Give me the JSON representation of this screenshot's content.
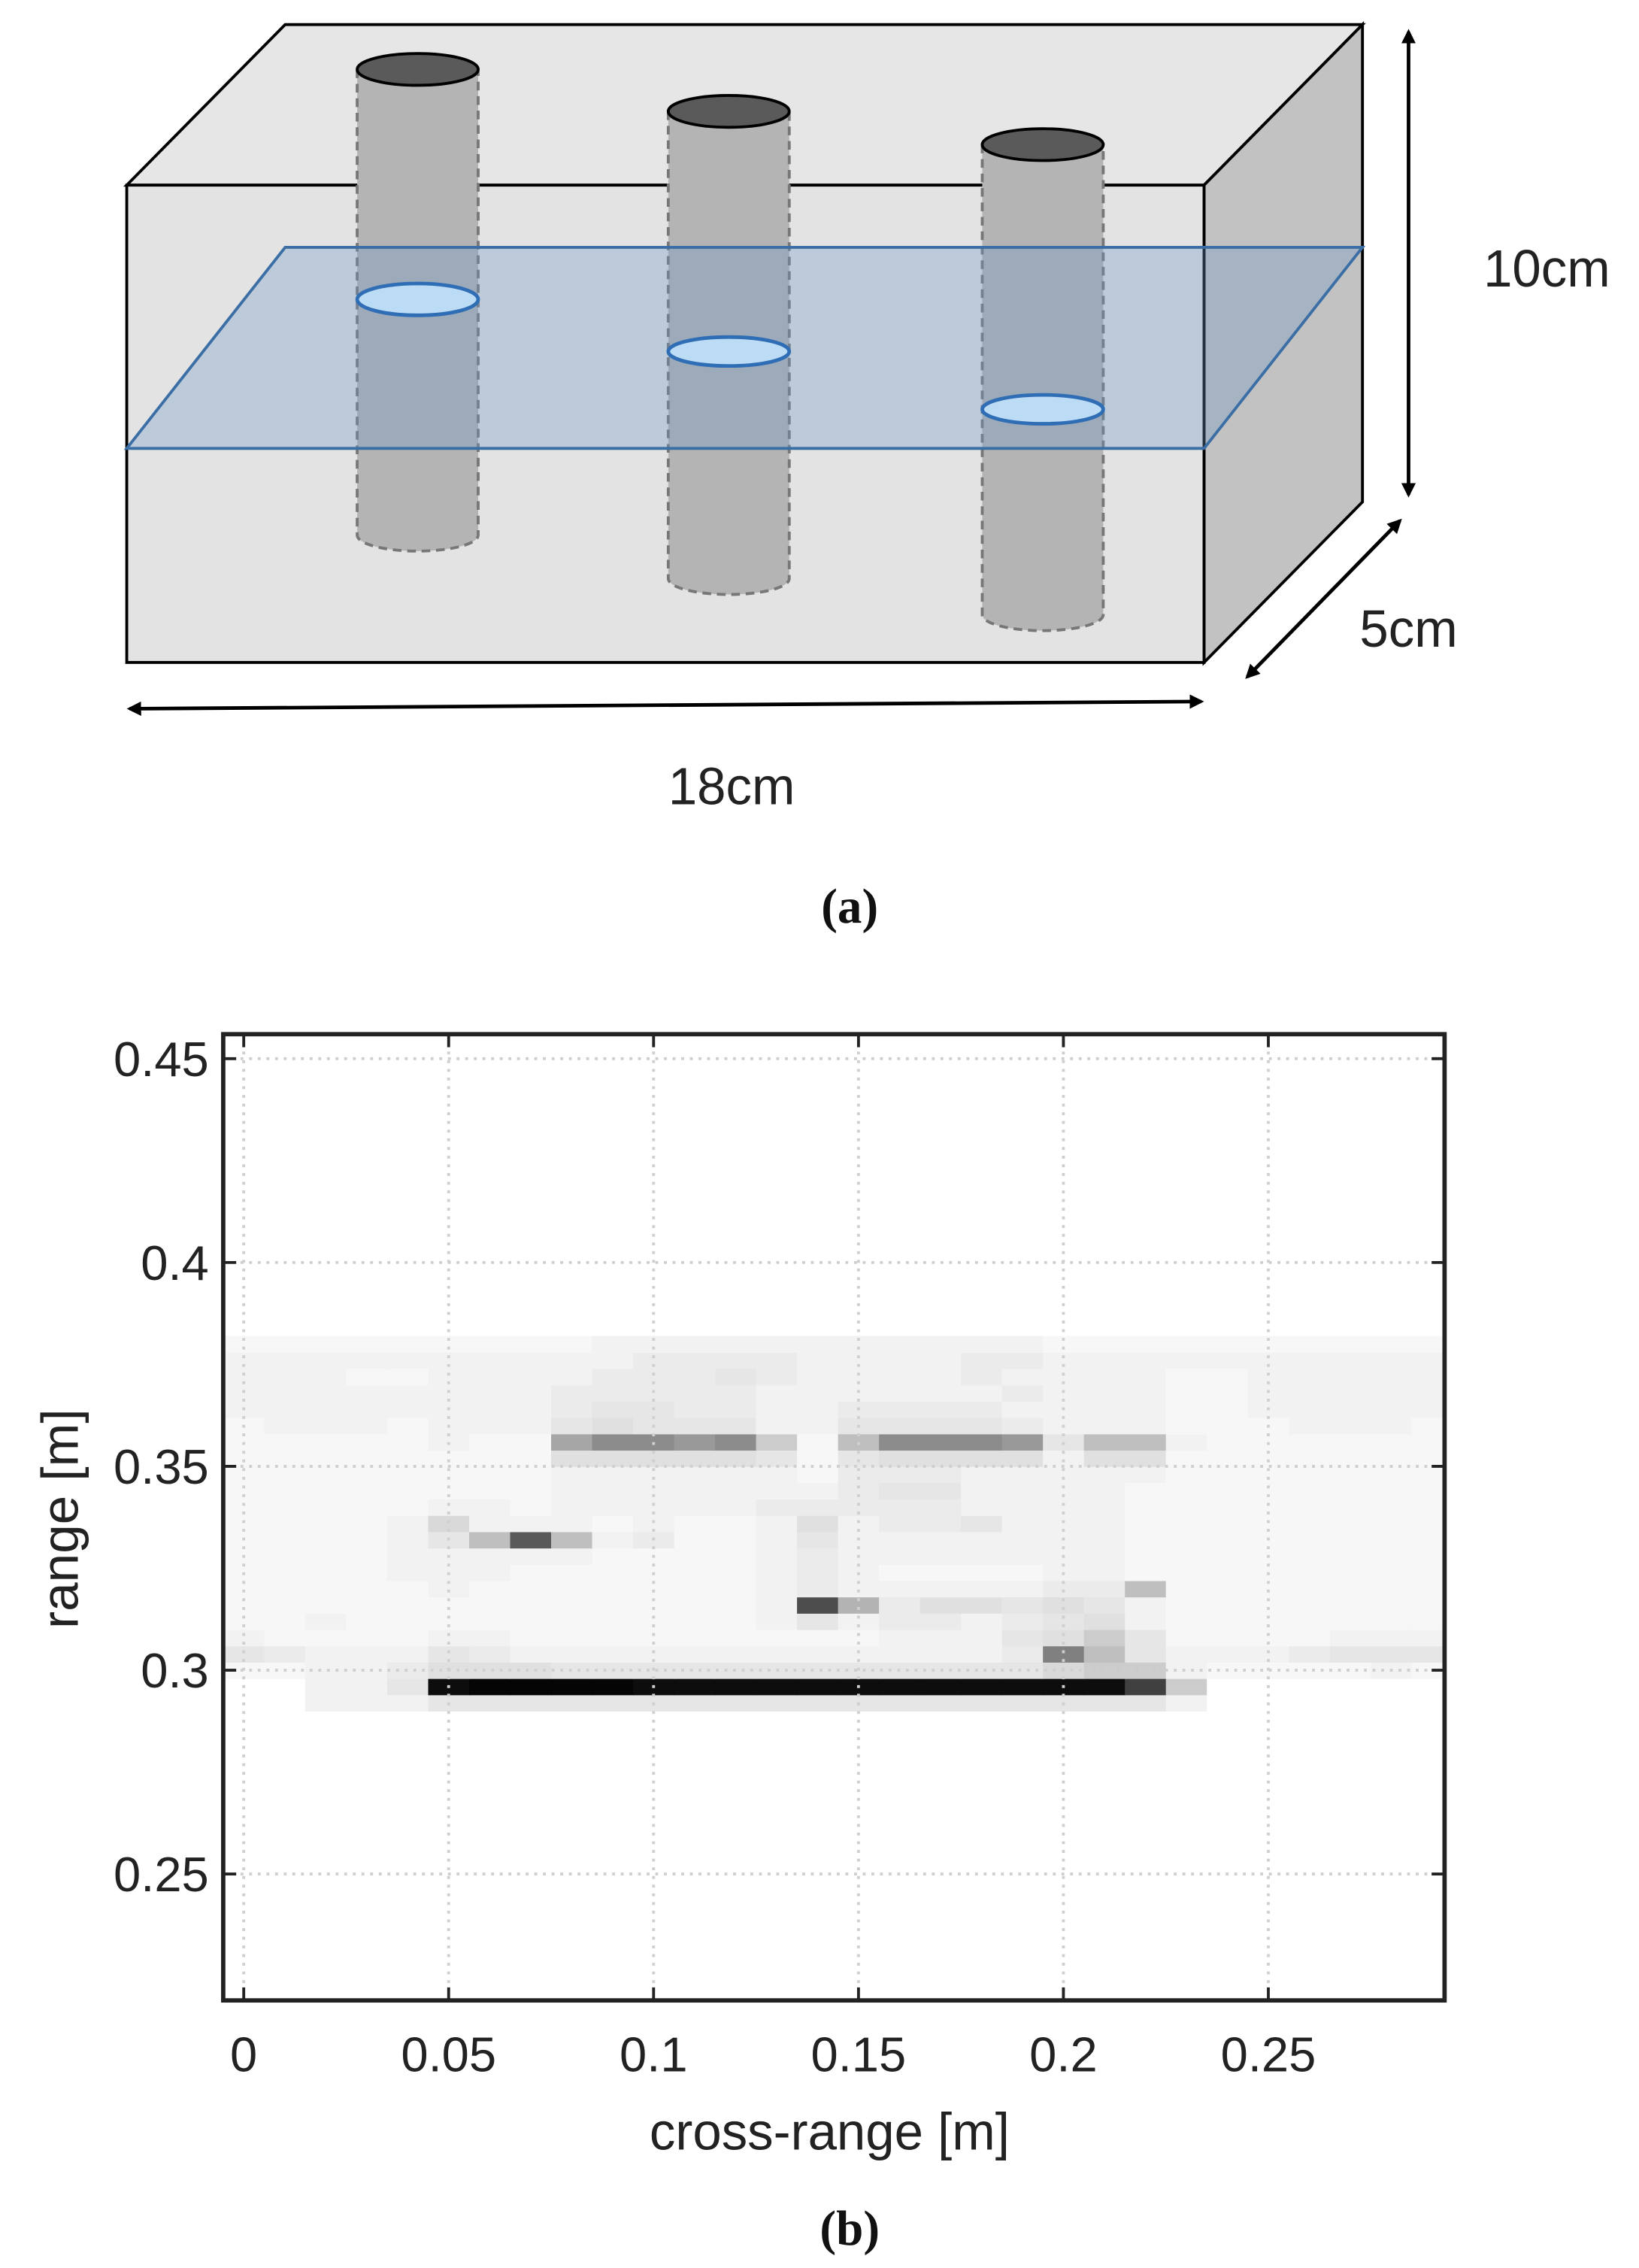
{
  "diagram": {
    "height_label": "10cm",
    "depth_label": "5cm",
    "width_label": "18cm",
    "caption": "(a)"
  },
  "chart_data": {
    "type": "heatmap",
    "caption": "(b)",
    "xlabel": "cross-range [m]",
    "ylabel": "range [m]",
    "x": [
      0,
      0.01,
      0.02,
      0.03,
      0.04,
      0.05,
      0.06,
      0.07,
      0.08,
      0.09,
      0.1,
      0.11,
      0.12,
      0.13,
      0.14,
      0.15,
      0.16,
      0.17,
      0.18,
      0.19,
      0.2,
      0.21,
      0.22,
      0.23,
      0.24,
      0.25,
      0.26,
      0.27,
      0.28,
      0.29
    ],
    "y": [
      0.292,
      0.296,
      0.3,
      0.304,
      0.308,
      0.312,
      0.316,
      0.32,
      0.324,
      0.328,
      0.332,
      0.336,
      0.34,
      0.344,
      0.348,
      0.352,
      0.356,
      0.36,
      0.364,
      0.368,
      0.372,
      0.376,
      0.38
    ],
    "z": [
      [
        0,
        0,
        0.05,
        0.05,
        0.05,
        0.1,
        0.1,
        0.1,
        0.1,
        0.1,
        0.1,
        0.1,
        0.1,
        0.1,
        0.1,
        0.1,
        0.1,
        0.1,
        0.1,
        0.1,
        0.1,
        0.1,
        0.1,
        0.05,
        0,
        0,
        0,
        0,
        0,
        0
      ],
      [
        0,
        0,
        0.05,
        0.05,
        0.1,
        0.95,
        0.98,
        0.98,
        0.98,
        0.98,
        0.95,
        0.95,
        0.95,
        0.95,
        0.95,
        0.95,
        0.95,
        0.95,
        0.95,
        0.95,
        0.95,
        0.95,
        0.75,
        0.2,
        0,
        0,
        0,
        0,
        0,
        0
      ],
      [
        0.03,
        0.03,
        0.05,
        0.05,
        0.08,
        0.12,
        0.12,
        0.12,
        0.1,
        0.1,
        0.1,
        0.1,
        0.1,
        0.1,
        0.1,
        0.1,
        0.1,
        0.1,
        0.1,
        0.1,
        0.15,
        0.2,
        0.2,
        0.05,
        0.03,
        0.03,
        0.03,
        0.03,
        0.05,
        0.03
      ],
      [
        0.1,
        0.08,
        0.05,
        0.05,
        0.05,
        0.1,
        0.08,
        0.05,
        0.05,
        0.05,
        0.05,
        0.05,
        0.05,
        0.05,
        0.05,
        0.05,
        0.05,
        0.05,
        0.05,
        0.08,
        0.5,
        0.25,
        0.1,
        0.05,
        0.05,
        0.05,
        0.08,
        0.1,
        0.1,
        0.1
      ],
      [
        0.05,
        0.03,
        0.03,
        0.03,
        0.03,
        0.05,
        0.05,
        0.03,
        0.03,
        0.03,
        0.03,
        0.03,
        0.03,
        0.03,
        0.03,
        0.03,
        0.05,
        0.05,
        0.05,
        0.1,
        0.12,
        0.2,
        0.1,
        0.03,
        0.03,
        0.03,
        0.03,
        0.05,
        0.05,
        0.05
      ],
      [
        0.03,
        0.03,
        0.05,
        0.03,
        0.03,
        0.03,
        0.03,
        0.03,
        0.03,
        0.03,
        0.03,
        0.03,
        0.03,
        0.05,
        0.1,
        0.05,
        0.08,
        0.08,
        0.05,
        0.08,
        0.1,
        0.12,
        0.05,
        0.03,
        0.03,
        0.03,
        0.03,
        0.03,
        0.03,
        0.03
      ],
      [
        0.03,
        0.03,
        0.03,
        0.03,
        0.03,
        0.03,
        0.03,
        0.03,
        0.03,
        0.03,
        0.03,
        0.03,
        0.03,
        0.05,
        0.7,
        0.3,
        0.08,
        0.12,
        0.12,
        0.1,
        0.12,
        0.1,
        0.05,
        0.03,
        0.03,
        0.03,
        0.03,
        0.03,
        0.03,
        0.03
      ],
      [
        0.03,
        0.03,
        0.03,
        0.03,
        0.03,
        0.05,
        0.03,
        0.03,
        0.03,
        0.03,
        0.03,
        0.03,
        0.03,
        0.05,
        0.08,
        0.05,
        0.05,
        0.05,
        0.05,
        0.05,
        0.08,
        0.08,
        0.25,
        0.03,
        0.03,
        0.03,
        0.03,
        0.03,
        0.03,
        0.03
      ],
      [
        0.03,
        0.03,
        0.03,
        0.03,
        0.05,
        0.05,
        0.05,
        0.03,
        0.03,
        0.03,
        0.03,
        0.03,
        0.03,
        0.05,
        0.08,
        0.05,
        0.03,
        0.03,
        0.03,
        0.03,
        0.05,
        0.05,
        0.03,
        0.03,
        0.03,
        0.03,
        0.03,
        0.03,
        0.03,
        0.03
      ],
      [
        0.03,
        0.03,
        0.03,
        0.03,
        0.05,
        0.05,
        0.05,
        0.05,
        0.05,
        0.03,
        0.03,
        0.03,
        0.03,
        0.05,
        0.08,
        0.05,
        0.05,
        0.05,
        0.05,
        0.05,
        0.05,
        0.05,
        0.03,
        0.03,
        0.03,
        0.03,
        0.03,
        0.03,
        0.03,
        0.03
      ],
      [
        0.03,
        0.03,
        0.03,
        0.03,
        0.05,
        0.1,
        0.25,
        0.65,
        0.25,
        0.05,
        0.08,
        0.03,
        0.03,
        0.05,
        0.1,
        0.05,
        0.05,
        0.05,
        0.05,
        0.05,
        0.05,
        0.05,
        0.03,
        0.03,
        0.03,
        0.03,
        0.03,
        0.03,
        0.03,
        0.03
      ],
      [
        0.03,
        0.03,
        0.03,
        0.03,
        0.05,
        0.15,
        0.05,
        0.05,
        0.05,
        0.03,
        0.05,
        0.03,
        0.03,
        0.05,
        0.12,
        0.05,
        0.08,
        0.08,
        0.1,
        0.05,
        0.05,
        0.05,
        0.03,
        0.03,
        0.03,
        0.03,
        0.03,
        0.03,
        0.03,
        0.03
      ],
      [
        0.03,
        0.03,
        0.03,
        0.03,
        0.03,
        0.05,
        0.05,
        0.03,
        0.05,
        0.05,
        0.05,
        0.05,
        0.05,
        0.08,
        0.08,
        0.08,
        0.08,
        0.08,
        0.05,
        0.05,
        0.05,
        0.05,
        0.03,
        0.03,
        0.03,
        0.03,
        0.03,
        0.03,
        0.03,
        0.03
      ],
      [
        0.03,
        0.03,
        0.03,
        0.03,
        0.03,
        0.03,
        0.03,
        0.03,
        0.05,
        0.05,
        0.05,
        0.05,
        0.05,
        0.05,
        0.05,
        0.08,
        0.1,
        0.1,
        0.05,
        0.05,
        0.05,
        0.05,
        0.03,
        0.03,
        0.03,
        0.03,
        0.03,
        0.03,
        0.03,
        0.03
      ],
      [
        0.03,
        0.03,
        0.03,
        0.03,
        0.03,
        0.03,
        0.03,
        0.03,
        0.05,
        0.05,
        0.05,
        0.05,
        0.05,
        0.05,
        0.03,
        0.08,
        0.08,
        0.08,
        0.05,
        0.05,
        0.05,
        0.05,
        0.05,
        0.03,
        0.03,
        0.03,
        0.03,
        0.03,
        0.03,
        0.03
      ],
      [
        0.03,
        0.03,
        0.03,
        0.03,
        0.03,
        0.03,
        0.03,
        0.03,
        0.12,
        0.12,
        0.12,
        0.12,
        0.12,
        0.1,
        0.03,
        0.1,
        0.12,
        0.12,
        0.12,
        0.12,
        0.05,
        0.12,
        0.12,
        0.03,
        0.03,
        0.03,
        0.03,
        0.03,
        0.03,
        0.03
      ],
      [
        0.03,
        0.03,
        0.03,
        0.03,
        0.03,
        0.05,
        0.03,
        0.03,
        0.35,
        0.45,
        0.45,
        0.4,
        0.45,
        0.2,
        0.03,
        0.25,
        0.45,
        0.45,
        0.45,
        0.4,
        0.1,
        0.25,
        0.25,
        0.05,
        0.03,
        0.03,
        0.03,
        0.03,
        0.03,
        0.03
      ],
      [
        0.03,
        0.05,
        0.05,
        0.05,
        0.03,
        0.05,
        0.05,
        0.05,
        0.1,
        0.12,
        0.1,
        0.1,
        0.1,
        0.05,
        0.05,
        0.1,
        0.1,
        0.1,
        0.1,
        0.08,
        0.05,
        0.05,
        0.05,
        0.03,
        0.03,
        0.03,
        0.05,
        0.05,
        0.05,
        0.03
      ],
      [
        0.05,
        0.05,
        0.05,
        0.05,
        0.05,
        0.05,
        0.05,
        0.05,
        0.08,
        0.1,
        0.1,
        0.08,
        0.08,
        0.05,
        0.05,
        0.08,
        0.08,
        0.08,
        0.08,
        0.05,
        0.05,
        0.05,
        0.05,
        0.03,
        0.03,
        0.05,
        0.05,
        0.05,
        0.05,
        0.05
      ],
      [
        0.05,
        0.05,
        0.05,
        0.05,
        0.05,
        0.05,
        0.05,
        0.05,
        0.08,
        0.08,
        0.08,
        0.08,
        0.08,
        0.05,
        0.05,
        0.05,
        0.05,
        0.05,
        0.05,
        0.08,
        0.05,
        0.05,
        0.05,
        0.03,
        0.03,
        0.05,
        0.05,
        0.05,
        0.05,
        0.05
      ],
      [
        0.05,
        0.05,
        0.05,
        0.03,
        0.03,
        0.05,
        0.05,
        0.05,
        0.05,
        0.08,
        0.08,
        0.08,
        0.1,
        0.08,
        0.05,
        0.05,
        0.05,
        0.05,
        0.08,
        0.05,
        0.05,
        0.05,
        0.05,
        0.03,
        0.03,
        0.05,
        0.05,
        0.05,
        0.05,
        0.05
      ],
      [
        0.05,
        0.05,
        0.05,
        0.05,
        0.05,
        0.05,
        0.05,
        0.05,
        0.05,
        0.05,
        0.08,
        0.08,
        0.08,
        0.08,
        0.05,
        0.05,
        0.05,
        0.05,
        0.08,
        0.08,
        0.05,
        0.05,
        0.05,
        0.05,
        0.05,
        0.05,
        0.05,
        0.05,
        0.05,
        0.05
      ],
      [
        0.03,
        0.03,
        0.03,
        0.03,
        0.03,
        0.03,
        0.03,
        0.03,
        0.03,
        0.05,
        0.05,
        0.05,
        0.05,
        0.05,
        0.05,
        0.05,
        0.05,
        0.05,
        0.05,
        0.05,
        0.03,
        0.03,
        0.03,
        0.03,
        0.03,
        0.03,
        0.03,
        0.03,
        0.03,
        0.03
      ]
    ],
    "colormap": "gray-reversed",
    "xlim": [
      -0.005,
      0.293
    ],
    "ylim": [
      0.219,
      0.456
    ],
    "xticks": [
      0,
      0.05,
      0.1,
      0.15,
      0.2,
      0.25
    ],
    "yticks": [
      0.25,
      0.3,
      0.35,
      0.4,
      0.45
    ],
    "grid": true
  }
}
